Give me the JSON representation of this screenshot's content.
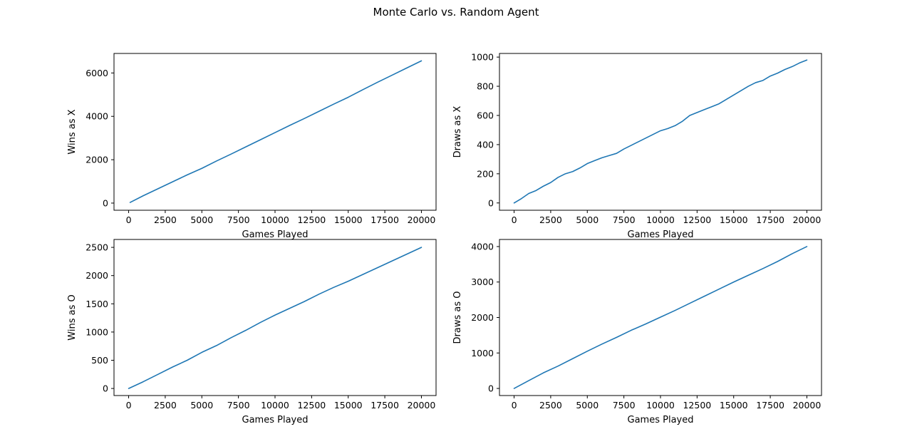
{
  "figure": {
    "title": "Monte Carlo vs. Random Agent"
  },
  "colors": {
    "line": "#1f77b4",
    "axes": "#000000",
    "background": "#ffffff"
  },
  "chart_data": [
    {
      "type": "line",
      "xlabel": "Games Played",
      "ylabel": "Wins as X",
      "xlim": [
        -1000,
        21000
      ],
      "ylim": [
        -330,
        6900
      ],
      "xticks": [
        0,
        2500,
        5000,
        7500,
        10000,
        12500,
        15000,
        17500,
        20000
      ],
      "yticks": [
        0,
        2000,
        4000,
        6000
      ],
      "grid": false,
      "series": [
        {
          "x": [
            100,
            1000,
            2000,
            3000,
            4000,
            5000,
            6000,
            7000,
            8000,
            9000,
            10000,
            11000,
            12000,
            13000,
            14000,
            15000,
            16000,
            17000,
            18000,
            19000,
            20000
          ],
          "y": [
            30,
            340,
            660,
            980,
            1300,
            1600,
            1940,
            2260,
            2590,
            2920,
            3250,
            3580,
            3900,
            4230,
            4560,
            4880,
            5230,
            5570,
            5900,
            6230,
            6560
          ]
        }
      ]
    },
    {
      "type": "line",
      "xlabel": "Games Played",
      "ylabel": "Draws as X",
      "xlim": [
        -1000,
        21000
      ],
      "ylim": [
        -50,
        1025
      ],
      "xticks": [
        0,
        2500,
        5000,
        7500,
        10000,
        12500,
        15000,
        17500,
        20000
      ],
      "yticks": [
        0,
        200,
        400,
        600,
        800,
        1000
      ],
      "grid": false,
      "series": [
        {
          "x": [
            0,
            500,
            1000,
            1500,
            2000,
            2500,
            3000,
            3500,
            4000,
            4500,
            5000,
            5500,
            6000,
            6500,
            7000,
            7500,
            8000,
            8500,
            9000,
            9500,
            10000,
            10500,
            11000,
            11500,
            12000,
            12500,
            13000,
            13500,
            14000,
            14500,
            15000,
            15500,
            16000,
            16500,
            17000,
            17500,
            18000,
            18500,
            19000,
            19500,
            20000
          ],
          "y": [
            0,
            30,
            65,
            85,
            115,
            140,
            175,
            200,
            215,
            240,
            270,
            290,
            310,
            325,
            340,
            370,
            395,
            420,
            445,
            470,
            495,
            510,
            530,
            560,
            600,
            620,
            640,
            660,
            680,
            710,
            740,
            770,
            800,
            825,
            840,
            870,
            890,
            915,
            935,
            960,
            980
          ]
        }
      ]
    },
    {
      "type": "line",
      "xlabel": "Games Played",
      "ylabel": "Wins as O",
      "xlim": [
        -1000,
        21000
      ],
      "ylim": [
        -125,
        2640
      ],
      "xticks": [
        0,
        2500,
        5000,
        7500,
        10000,
        12500,
        15000,
        17500,
        20000
      ],
      "yticks": [
        0,
        500,
        1000,
        1500,
        2000,
        2500
      ],
      "grid": false,
      "series": [
        {
          "x": [
            0,
            1000,
            2000,
            3000,
            4000,
            5000,
            6000,
            7000,
            8000,
            9000,
            10000,
            11000,
            12000,
            13000,
            14000,
            15000,
            16000,
            17000,
            18000,
            19000,
            20000
          ],
          "y": [
            0,
            120,
            250,
            380,
            500,
            640,
            760,
            900,
            1030,
            1170,
            1300,
            1420,
            1540,
            1670,
            1790,
            1900,
            2020,
            2140,
            2260,
            2380,
            2500
          ]
        }
      ]
    },
    {
      "type": "line",
      "xlabel": "Games Played",
      "ylabel": "Draws as O",
      "xlim": [
        -1000,
        21000
      ],
      "ylim": [
        -200,
        4200
      ],
      "xticks": [
        0,
        2500,
        5000,
        7500,
        10000,
        12500,
        15000,
        17500,
        20000
      ],
      "yticks": [
        0,
        1000,
        2000,
        3000,
        4000
      ],
      "grid": false,
      "series": [
        {
          "x": [
            0,
            1000,
            2000,
            3000,
            4000,
            5000,
            6000,
            7000,
            8000,
            9000,
            10000,
            11000,
            12000,
            13000,
            14000,
            15000,
            16000,
            17000,
            18000,
            19000,
            20000
          ],
          "y": [
            0,
            220,
            440,
            630,
            840,
            1050,
            1250,
            1440,
            1640,
            1820,
            2010,
            2200,
            2400,
            2600,
            2800,
            3000,
            3190,
            3380,
            3580,
            3800,
            4000
          ]
        }
      ]
    }
  ]
}
